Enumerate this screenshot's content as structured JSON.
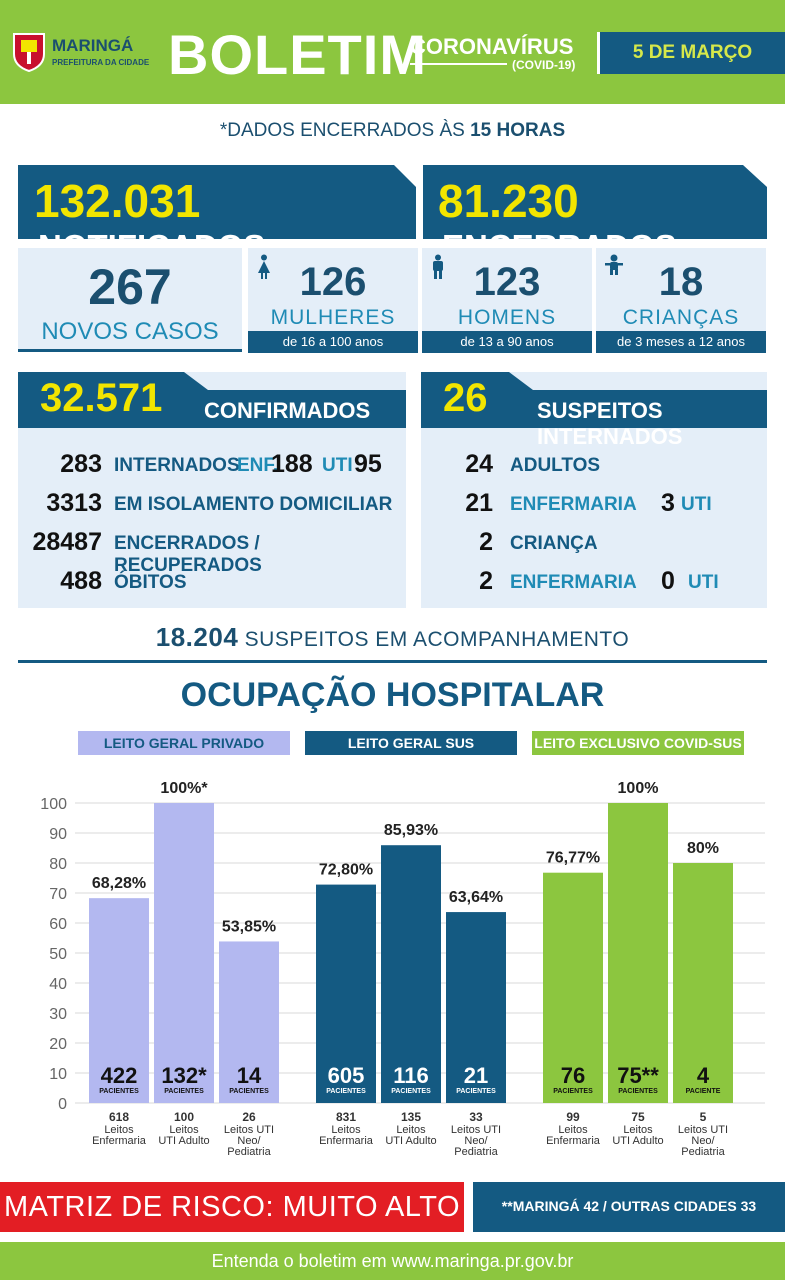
{
  "header": {
    "logo_name": "MARINGÁ",
    "logo_sub": "PREFEITURA DA CIDADE",
    "title": "BOLETIM",
    "subtitle": "CORONAVÍRUS",
    "subtitle2": "(COVID-19)",
    "date": "5 DE MARÇO",
    "colors": {
      "green": "#8cc63f",
      "navy": "#145a82",
      "yellow": "#f2e500"
    }
  },
  "data_note": {
    "prefix": "*DADOS ENCERRADOS ÀS ",
    "hour": "15 HORAS"
  },
  "totals": {
    "notificados_num": "132.031",
    "notificados_label": "NOTIFICADOS",
    "encerrados_num": "81.230",
    "encerrados_label": "ENCERRADOS"
  },
  "new_cases": {
    "num": "267",
    "label": "NOVOS CASOS",
    "groups": [
      {
        "num": "126",
        "label": "MULHERES",
        "range": "de 16 a 100 anos",
        "icon": "woman-icon"
      },
      {
        "num": "123",
        "label": "HOMENS",
        "range": "de 13 a 90 anos",
        "icon": "man-icon"
      },
      {
        "num": "18",
        "label": "CRIANÇAS",
        "range": "de 3 meses a 12 anos",
        "icon": "child-icon"
      }
    ]
  },
  "confirmed": {
    "num": "32.571",
    "label": "CONFIRMADOS",
    "internados_num": "283",
    "internados_label": "INTERNADOS",
    "enf_label": "ENF.",
    "enf_num": "188",
    "uti_label": "UTI",
    "uti_num": "95",
    "isolamento_num": "3313",
    "isolamento_label": "EM ISOLAMENTO DOMICILIAR",
    "recuperados_num": "28487",
    "recuperados_label": "ENCERRADOS / RECUPERADOS",
    "obitos_num": "488",
    "obitos_label": "ÓBITOS"
  },
  "suspects": {
    "num": "26",
    "label": "SUSPEITOS INTERNADOS",
    "adultos_num": "24",
    "adultos_label": "ADULTOS",
    "adult_enf_num": "21",
    "adult_enf_label": "ENFERMARIA",
    "adult_uti_num": "3",
    "adult_uti_label": "UTI",
    "crianca_num": "2",
    "crianca_label": "CRIANÇA",
    "child_enf_num": "2",
    "child_enf_label": "ENFERMARIA",
    "child_uti_num": "0",
    "child_uti_label": "UTI"
  },
  "acompanhamento": {
    "num": "18.204",
    "label": "SUSPEITOS EM ACOMPANHAMENTO"
  },
  "occupation_title": "OCUPAÇÃO HOSPITALAR",
  "chart_data": {
    "type": "bar",
    "title": "OCUPAÇÃO HOSPITALAR",
    "ylim": [
      0,
      100
    ],
    "yticks": [
      0,
      10,
      20,
      30,
      40,
      50,
      60,
      70,
      80,
      90,
      100
    ],
    "grid": true,
    "groups": [
      {
        "name": "LEITO GERAL PRIVADO",
        "color": "#b3b8f0",
        "bars": [
          {
            "value": 68.28,
            "label": "68,28%",
            "patients": "422",
            "patients_label": "PACIENTES",
            "beds": "618",
            "cat": [
              "Leitos",
              "Enfermaria"
            ]
          },
          {
            "value": 100,
            "label": "100%*",
            "patients": "132*",
            "patients_label": "PACIENTES",
            "beds": "100",
            "cat": [
              "Leitos",
              "UTI Adulto"
            ]
          },
          {
            "value": 53.85,
            "label": "53,85%",
            "patients": "14",
            "patients_label": "PACIENTES",
            "beds": "26",
            "cat": [
              "Leitos UTI",
              "Neo/",
              "Pediatria"
            ]
          }
        ]
      },
      {
        "name": "LEITO GERAL SUS",
        "color": "#145a82",
        "bars": [
          {
            "value": 72.8,
            "label": "72,80%",
            "patients": "605",
            "patients_label": "PACIENTES",
            "beds": "831",
            "cat": [
              "Leitos",
              "Enfermaria"
            ]
          },
          {
            "value": 85.93,
            "label": "85,93%",
            "patients": "116",
            "patients_label": "PACIENTES",
            "beds": "135",
            "cat": [
              "Leitos",
              "UTI Adulto"
            ]
          },
          {
            "value": 63.64,
            "label": "63,64%",
            "patients": "21",
            "patients_label": "PACIENTES",
            "beds": "33",
            "cat": [
              "Leitos UTI",
              "Neo/",
              "Pediatria"
            ]
          }
        ]
      },
      {
        "name": "LEITO EXCLUSIVO COVID-SUS",
        "color": "#8cc63f",
        "bars": [
          {
            "value": 76.77,
            "label": "76,77%",
            "patients": "76",
            "patients_label": "PACIENTES",
            "beds": "99",
            "cat": [
              "Leitos",
              "Enfermaria"
            ]
          },
          {
            "value": 100,
            "label": "100%",
            "patients": "75**",
            "patients_label": "PACIENTES",
            "beds": "75",
            "cat": [
              "Leitos",
              "UTI Adulto"
            ]
          },
          {
            "value": 80,
            "label": "80%",
            "patients": "4",
            "patients_label": "PACIENTE",
            "beds": "5",
            "cat": [
              "Leitos UTI",
              "Neo/",
              "Pediatria"
            ]
          }
        ]
      }
    ]
  },
  "risk": {
    "text": "MATRIZ DE RISCO: MUITO ALTO",
    "note": "**MARINGÁ 42 / OUTRAS CIDADES 33"
  },
  "footer": {
    "text": "Entenda o boletim em www.maringa.pr.gov.br"
  }
}
